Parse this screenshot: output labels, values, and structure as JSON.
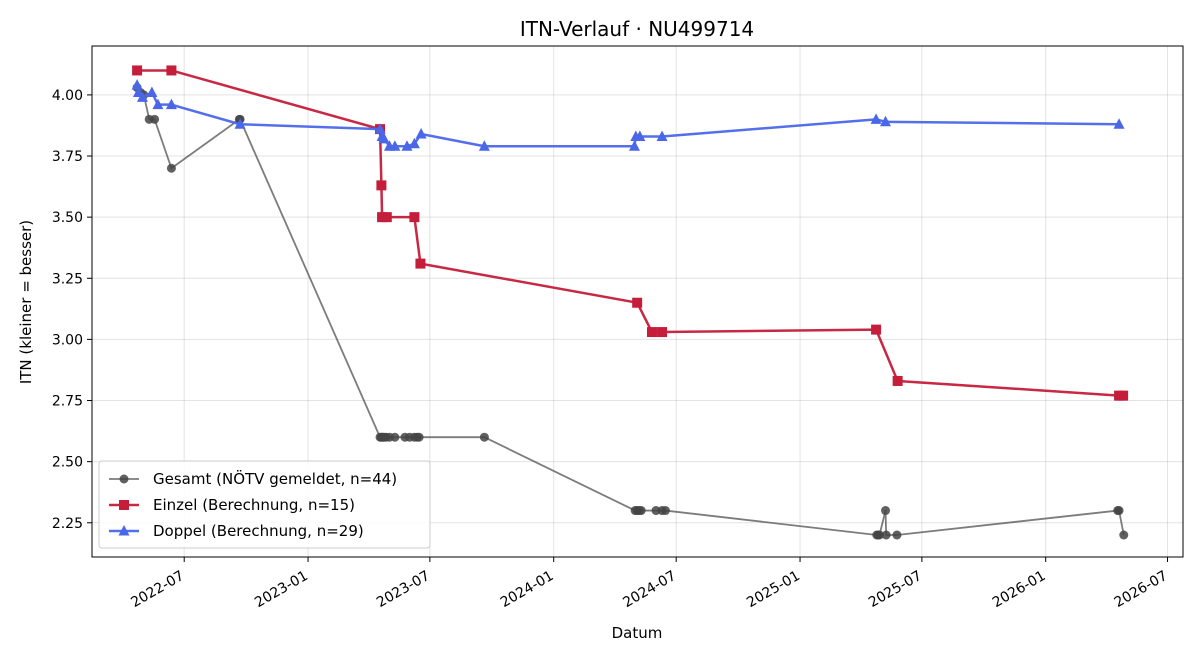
{
  "chart_data": {
    "type": "line",
    "title": "ITN-Verlauf · NU499714",
    "xlabel": "Datum",
    "ylabel": "ITN  (kleiner = besser)",
    "xlim": [
      "2022-02-14",
      "2026-07-24"
    ],
    "ylim": [
      2.11,
      4.2
    ],
    "x_ticks": [
      "2022-07-01",
      "2023-01-01",
      "2023-07-01",
      "2024-01-01",
      "2024-07-01",
      "2025-01-01",
      "2025-07-01",
      "2026-01-01",
      "2026-07-01"
    ],
    "x_tick_labels": [
      "2022-07",
      "2023-01",
      "2023-07",
      "2024-01",
      "2024-07",
      "2025-01",
      "2025-07",
      "2026-01",
      "2026-07"
    ],
    "y_ticks": [
      2.25,
      2.5,
      2.75,
      3.0,
      3.25,
      3.5,
      3.75,
      4.0
    ],
    "y_tick_labels": [
      "2.25",
      "2.50",
      "2.75",
      "3.00",
      "3.25",
      "3.50",
      "3.75",
      "4.00"
    ],
    "grid": true,
    "legend_position": "lower-left",
    "series": [
      {
        "name": "Gesamt (NÖTV gemeldet, n=44)",
        "color": "#444444",
        "marker": "circle",
        "points": [
          [
            "2022-04-22",
            4.03
          ],
          [
            "2022-04-27",
            4.01
          ],
          [
            "2022-05-02",
            4.0
          ],
          [
            "2022-05-10",
            3.9
          ],
          [
            "2022-05-18",
            3.9
          ],
          [
            "2022-06-12",
            3.7
          ],
          [
            "2022-09-21",
            3.9
          ],
          [
            "2022-09-22",
            3.9
          ],
          [
            "2023-04-18",
            2.6
          ],
          [
            "2023-04-20",
            2.6
          ],
          [
            "2023-04-22",
            2.6
          ],
          [
            "2023-04-24",
            2.6
          ],
          [
            "2023-04-27",
            2.6
          ],
          [
            "2023-05-02",
            2.6
          ],
          [
            "2023-05-10",
            2.6
          ],
          [
            "2023-05-25",
            2.6
          ],
          [
            "2023-06-01",
            2.6
          ],
          [
            "2023-06-08",
            2.6
          ],
          [
            "2023-06-12",
            2.6
          ],
          [
            "2023-06-15",
            2.6
          ],
          [
            "2023-09-20",
            2.6
          ],
          [
            "2024-05-01",
            2.3
          ],
          [
            "2024-05-04",
            2.3
          ],
          [
            "2024-05-07",
            2.3
          ],
          [
            "2024-05-10",
            2.3
          ],
          [
            "2024-06-01",
            2.3
          ],
          [
            "2024-06-10",
            2.3
          ],
          [
            "2024-06-15",
            2.3
          ],
          [
            "2025-04-25",
            2.2
          ],
          [
            "2025-04-27",
            2.2
          ],
          [
            "2025-04-29",
            2.2
          ],
          [
            "2025-05-08",
            2.3
          ],
          [
            "2025-05-09",
            2.2
          ],
          [
            "2025-05-25",
            2.2
          ],
          [
            "2026-04-18",
            2.3
          ],
          [
            "2026-04-20",
            2.3
          ],
          [
            "2026-04-27",
            2.2
          ]
        ]
      },
      {
        "name": "Einzel (Berechnung, n=15)",
        "color": "#c41e3a",
        "marker": "square",
        "points": [
          [
            "2022-04-22",
            4.1
          ],
          [
            "2022-06-12",
            4.1
          ],
          [
            "2023-04-18",
            3.86
          ],
          [
            "2023-04-20",
            3.63
          ],
          [
            "2023-04-21",
            3.5
          ],
          [
            "2023-04-28",
            3.5
          ],
          [
            "2023-06-08",
            3.5
          ],
          [
            "2023-06-17",
            3.31
          ],
          [
            "2024-05-04",
            3.15
          ],
          [
            "2024-05-26",
            3.03
          ],
          [
            "2024-06-10",
            3.03
          ],
          [
            "2025-04-24",
            3.04
          ],
          [
            "2025-05-26",
            2.83
          ],
          [
            "2026-04-20",
            2.77
          ],
          [
            "2026-04-26",
            2.77
          ]
        ]
      },
      {
        "name": "Doppel (Berechnung, n=29)",
        "color": "#4a67e8",
        "marker": "triangle",
        "points": [
          [
            "2022-04-22",
            4.04
          ],
          [
            "2022-04-24",
            4.01
          ],
          [
            "2022-04-30",
            3.99
          ],
          [
            "2022-05-14",
            4.01
          ],
          [
            "2022-05-23",
            3.96
          ],
          [
            "2022-06-12",
            3.96
          ],
          [
            "2022-09-22",
            3.88
          ],
          [
            "2023-04-18",
            3.86
          ],
          [
            "2023-04-21",
            3.83
          ],
          [
            "2023-04-24",
            3.82
          ],
          [
            "2023-05-02",
            3.79
          ],
          [
            "2023-05-10",
            3.79
          ],
          [
            "2023-05-28",
            3.79
          ],
          [
            "2023-06-08",
            3.8
          ],
          [
            "2023-06-18",
            3.84
          ],
          [
            "2023-09-20",
            3.79
          ],
          [
            "2024-04-30",
            3.79
          ],
          [
            "2024-05-02",
            3.83
          ],
          [
            "2024-05-08",
            3.83
          ],
          [
            "2024-06-10",
            3.83
          ],
          [
            "2025-04-24",
            3.9
          ],
          [
            "2025-05-08",
            3.89
          ],
          [
            "2026-04-20",
            3.88
          ]
        ]
      }
    ]
  }
}
